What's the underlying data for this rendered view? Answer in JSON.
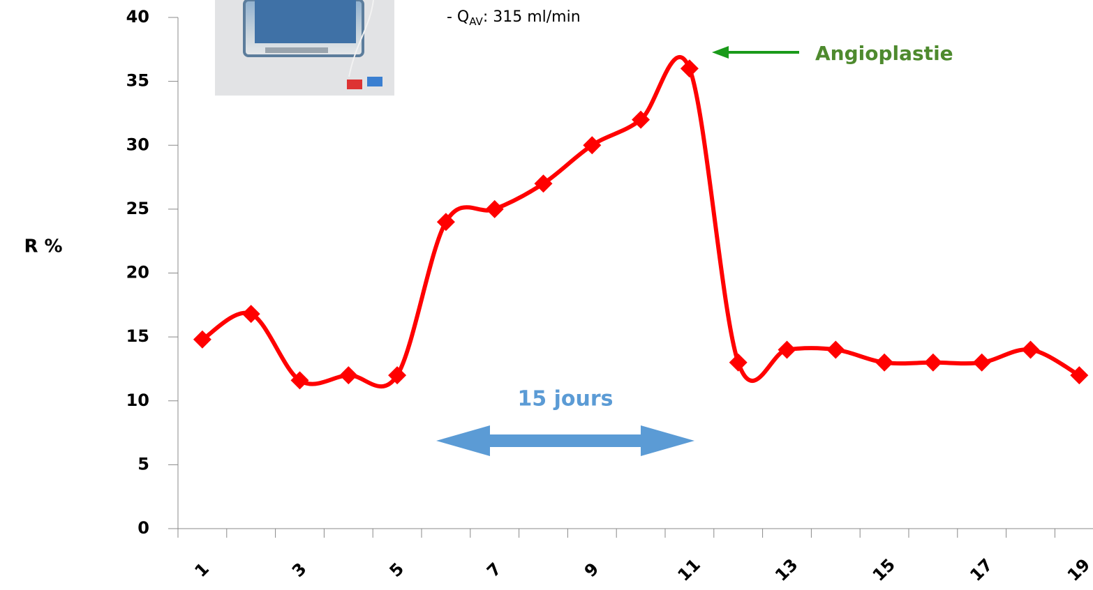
{
  "chart_data": {
    "type": "line",
    "ylabel": "R %",
    "categories": [
      "1",
      null,
      "3",
      null,
      "5",
      null,
      "7",
      null,
      "9",
      null,
      "11",
      null,
      "13",
      null,
      "15",
      null,
      "17",
      null,
      "19"
    ],
    "series": [
      {
        "name": null,
        "color": "#ff0000",
        "values": [
          14.8,
          16.8,
          11.6,
          12,
          12,
          24,
          25,
          27,
          30,
          32,
          36,
          13,
          14,
          14,
          13,
          13,
          13,
          14,
          12
        ]
      }
    ],
    "ylim": [
      0,
      40
    ],
    "yticks": [
      0,
      5,
      10,
      15,
      20,
      25,
      30,
      35,
      40
    ],
    "annotations": {
      "flow": {
        "prefix": "- Q",
        "sub": "AV",
        "suffix": ": 315 ml/min"
      },
      "event": "Angioplastie",
      "duration": "15 jours"
    }
  }
}
